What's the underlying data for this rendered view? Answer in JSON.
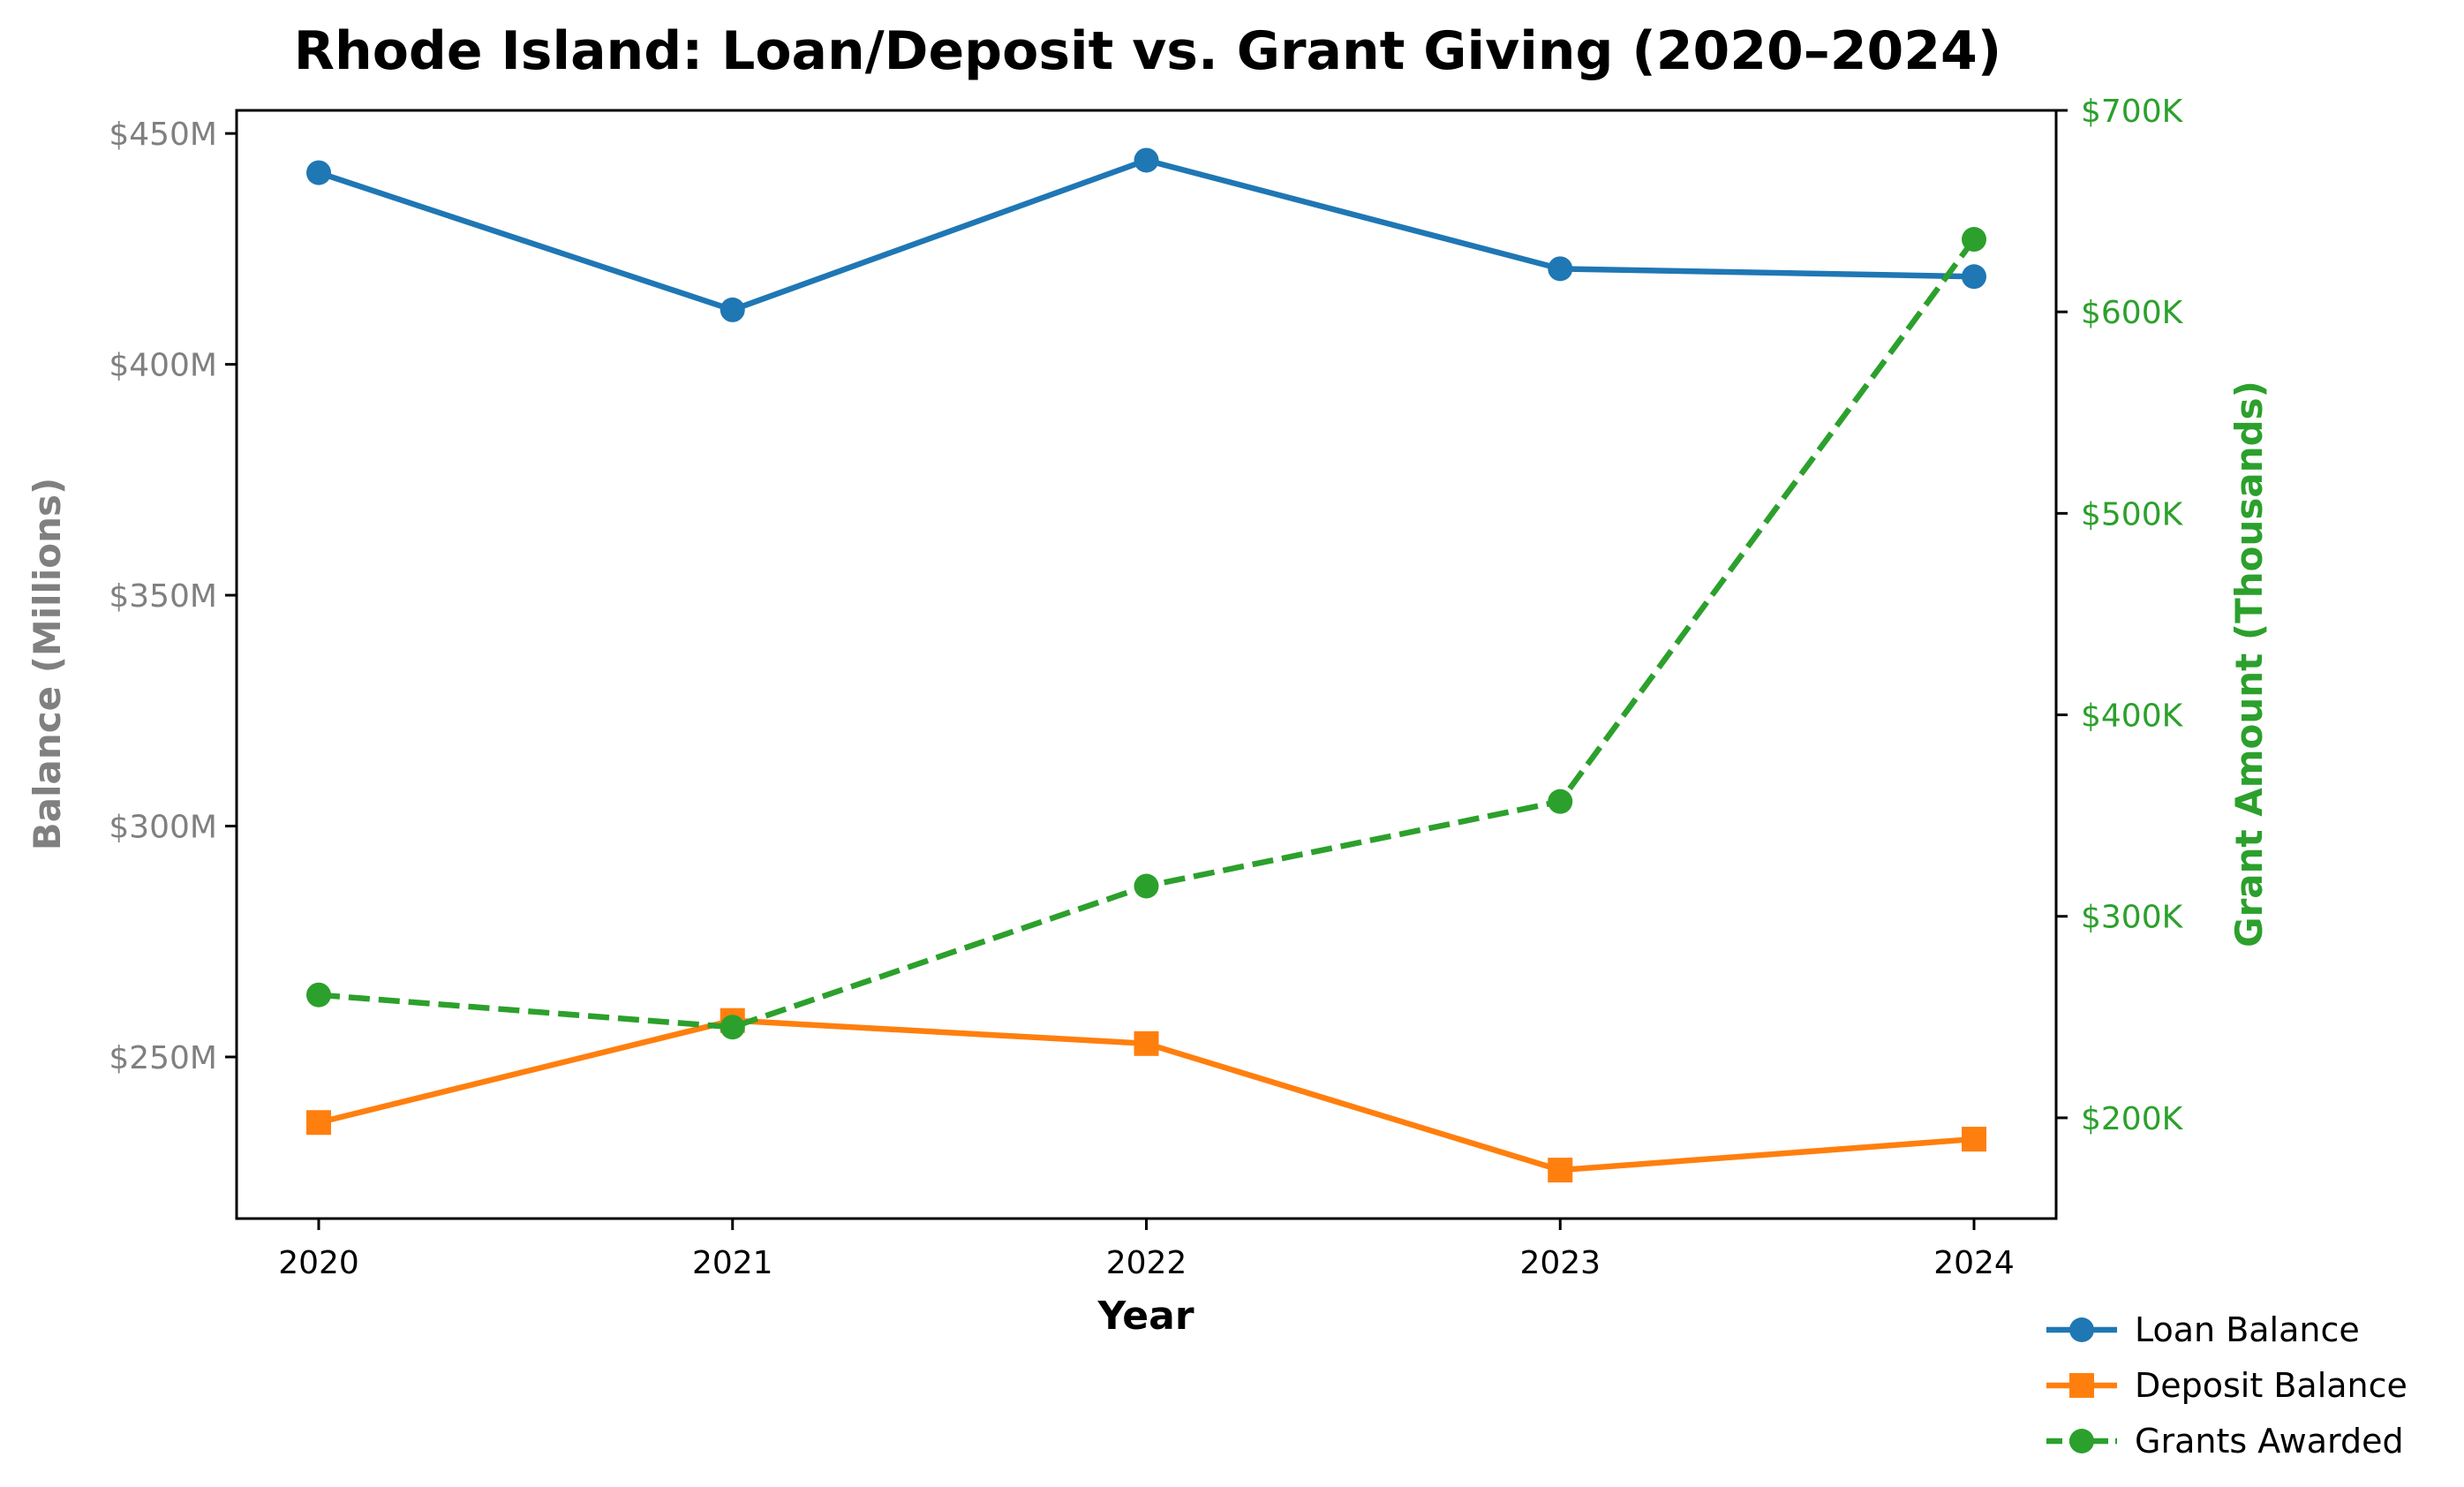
{
  "chart_data": {
    "type": "line",
    "title": "Rhode Island: Loan/Deposit vs. Grant Giving (2020–2024)",
    "xlabel": "Year",
    "ylabel": "Balance (Millions)",
    "y2label": "Grant Amount (Thousands)",
    "categories": [
      "2020",
      "2021",
      "2022",
      "2023",
      "2024"
    ],
    "ylim": [
      215,
      455
    ],
    "y2lim": [
      150,
      700
    ],
    "y_ticks": [
      250,
      300,
      350,
      400,
      450
    ],
    "y_tick_labels": [
      "$250M",
      "$300M",
      "$350M",
      "$400M",
      "$450M"
    ],
    "y2_ticks": [
      200,
      300,
      400,
      500,
      600,
      700
    ],
    "y2_tick_labels": [
      "$200K",
      "$300K",
      "$400K",
      "$500K",
      "$600K",
      "$700K"
    ],
    "grid": false,
    "legend_position": "bottom-right, outside plot",
    "series": [
      {
        "name": "Loan Balance",
        "axis": "left",
        "values": [
          441.5,
          411.8,
          444.2,
          420.7,
          419.0
        ],
        "color": "#1f77b4",
        "marker": "circle",
        "linestyle": "solid"
      },
      {
        "name": "Deposit Balance",
        "axis": "left",
        "values": [
          235.8,
          257.9,
          252.9,
          225.5,
          232.2
        ],
        "color": "#ff7f0e",
        "marker": "square",
        "linestyle": "solid"
      },
      {
        "name": "Grants Awarded",
        "axis": "right",
        "values": [
          261,
          245,
          315,
          357,
          636
        ],
        "color": "#2ca02c",
        "marker": "circle",
        "linestyle": "dashed"
      }
    ],
    "left_axis_color": "#808080",
    "right_axis_color": "#2ca02c"
  }
}
